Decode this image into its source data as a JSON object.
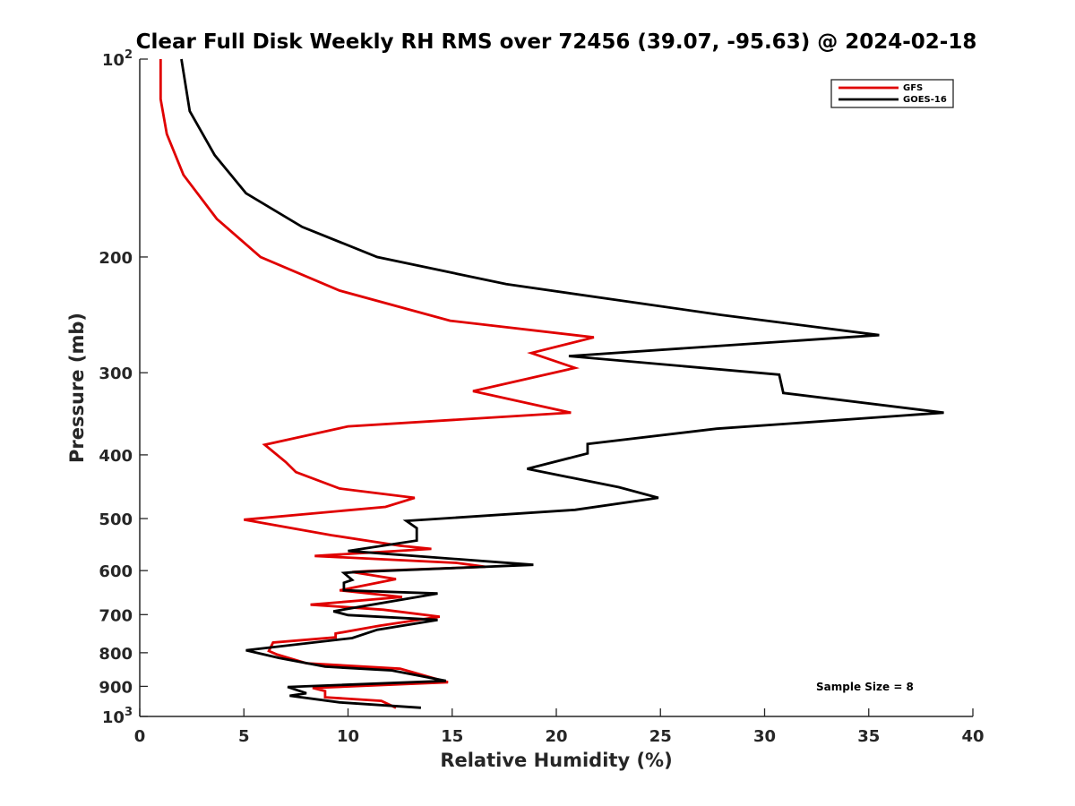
{
  "chart_data": {
    "type": "line",
    "title": "Clear Full Disk Weekly RH RMS over 72456 (39.07, -95.63) @ 2024-02-18",
    "xlabel": "Relative Humidity (%)",
    "ylabel": "Pressure (mb)",
    "xlim": [
      0,
      40
    ],
    "ylim": [
      100,
      1000
    ],
    "yscale": "log",
    "y_reversed": true,
    "grid": false,
    "legend_position": "top-right",
    "x_ticks": [
      "0",
      "5",
      "10",
      "15",
      "20",
      "25",
      "30",
      "35",
      "40"
    ],
    "y_ticks": [
      {
        "value": 100,
        "base": "10",
        "exp": "2"
      },
      {
        "value": 200,
        "label": "200"
      },
      {
        "value": 300,
        "label": "300"
      },
      {
        "value": 400,
        "label": "400"
      },
      {
        "value": 500,
        "label": "500"
      },
      {
        "value": 600,
        "label": "600"
      },
      {
        "value": 700,
        "label": "700"
      },
      {
        "value": 800,
        "label": "800"
      },
      {
        "value": 900,
        "label": "900"
      },
      {
        "value": 1000,
        "base": "10",
        "exp": "3"
      }
    ],
    "annotation": "Sample Size = 8",
    "series": [
      {
        "name": "GFS",
        "color": "#e00000",
        "points": [
          [
            1.0,
            100
          ],
          [
            1.0,
            115
          ],
          [
            1.3,
            130
          ],
          [
            2.1,
            150
          ],
          [
            3.7,
            175
          ],
          [
            5.8,
            200
          ],
          [
            9.6,
            225
          ],
          [
            14.9,
            250
          ],
          [
            21.8,
            265
          ],
          [
            18.8,
            280
          ],
          [
            20.9,
            295
          ],
          [
            16.0,
            320
          ],
          [
            20.7,
            345
          ],
          [
            10.0,
            362
          ],
          [
            6.0,
            386
          ],
          [
            7.0,
            410
          ],
          [
            7.5,
            425
          ],
          [
            9.6,
            450
          ],
          [
            13.2,
            465
          ],
          [
            11.8,
            480
          ],
          [
            5.0,
            502
          ],
          [
            9.2,
            530
          ],
          [
            12.5,
            550
          ],
          [
            14.0,
            556
          ],
          [
            8.4,
            570
          ],
          [
            15.2,
            584
          ],
          [
            16.6,
            592
          ],
          [
            11.0,
            601
          ],
          [
            10.2,
            603
          ],
          [
            12.3,
            618
          ],
          [
            9.6,
            643
          ],
          [
            12.6,
            658
          ],
          [
            8.2,
            676
          ],
          [
            11.7,
            688
          ],
          [
            14.4,
            705
          ],
          [
            11.5,
            728
          ],
          [
            9.4,
            748
          ],
          [
            9.4,
            758
          ],
          [
            6.4,
            772
          ],
          [
            6.2,
            795
          ],
          [
            6.6,
            805
          ],
          [
            8.0,
            830
          ],
          [
            12.5,
            846
          ],
          [
            14.8,
            887
          ],
          [
            8.3,
            905
          ],
          [
            8.9,
            915
          ],
          [
            8.9,
            935
          ],
          [
            11.6,
            947
          ],
          [
            12.3,
            970
          ]
        ]
      },
      {
        "name": "GOES-16",
        "color": "#000000",
        "points": [
          [
            2.0,
            100
          ],
          [
            2.4,
            120
          ],
          [
            3.6,
            140
          ],
          [
            5.1,
            160
          ],
          [
            7.8,
            180
          ],
          [
            11.4,
            200
          ],
          [
            17.6,
            220
          ],
          [
            27.9,
            245
          ],
          [
            35.5,
            263
          ],
          [
            20.6,
            283
          ],
          [
            30.7,
            302
          ],
          [
            30.9,
            322
          ],
          [
            38.6,
            345
          ],
          [
            27.7,
            365
          ],
          [
            21.5,
            385
          ],
          [
            21.5,
            398
          ],
          [
            18.6,
            420
          ],
          [
            23.0,
            448
          ],
          [
            24.9,
            465
          ],
          [
            20.9,
            485
          ],
          [
            12.8,
            504
          ],
          [
            13.3,
            517
          ],
          [
            13.3,
            540
          ],
          [
            10.0,
            560
          ],
          [
            18.9,
            588
          ],
          [
            10.3,
            603
          ],
          [
            9.8,
            605
          ],
          [
            10.2,
            620
          ],
          [
            9.8,
            626
          ],
          [
            9.8,
            643
          ],
          [
            14.3,
            650
          ],
          [
            9.3,
            692
          ],
          [
            10.0,
            701
          ],
          [
            14.3,
            713
          ],
          [
            11.4,
            738
          ],
          [
            10.2,
            760
          ],
          [
            5.1,
            793
          ],
          [
            6.7,
            815
          ],
          [
            8.9,
            840
          ],
          [
            12.1,
            851
          ],
          [
            14.7,
            883
          ],
          [
            7.1,
            902
          ],
          [
            8.0,
            922
          ],
          [
            7.2,
            930
          ],
          [
            9.6,
            952
          ],
          [
            13.5,
            970
          ]
        ]
      }
    ]
  }
}
